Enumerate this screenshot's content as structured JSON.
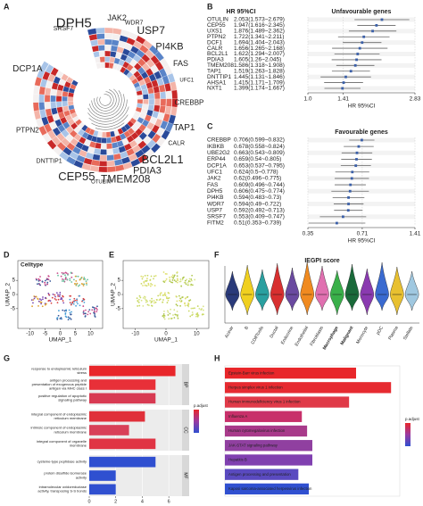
{
  "panels": [
    "A",
    "B",
    "C",
    "D",
    "E",
    "F",
    "G",
    "H"
  ],
  "circos": {
    "genes": [
      {
        "label": "DPH5",
        "color": "#222222"
      },
      {
        "label": "JAK2",
        "color": "#5a6ad8"
      },
      {
        "label": "WDR7",
        "color": "#9a9a9a"
      },
      {
        "label": "USP7",
        "color": "#b04ab8"
      },
      {
        "label": "PI4KB",
        "color": "#777777"
      },
      {
        "label": "FAS",
        "color": "#222222"
      },
      {
        "label": "UFC1",
        "color": "#8aa0e0"
      },
      {
        "label": "CREBBP",
        "color": "#c050b0"
      },
      {
        "label": "TAP1",
        "color": "#d04070"
      },
      {
        "label": "CALR",
        "color": "#6aa0d8"
      },
      {
        "label": "BCL2L1",
        "color": "#9acc30"
      },
      {
        "label": "PDIA3",
        "color": "#d8b020"
      },
      {
        "label": "TMEM208",
        "color": "#5ab848"
      },
      {
        "label": "OTULIN",
        "color": "#b0b0b0"
      },
      {
        "label": "CEP55",
        "color": "#3a9ae0"
      },
      {
        "label": "DNTTIP1",
        "color": "#b0b0b0"
      },
      {
        "label": "PTPN2",
        "color": "#222222"
      },
      {
        "label": "DCP1A",
        "color": "#c8c020"
      },
      {
        "label": "SRSF7",
        "color": "#555555"
      }
    ]
  },
  "chart_data": [
    {
      "type": "forest",
      "title": "Unfavourable genes",
      "header": "HR 95%CI",
      "xlabel": "HR 95%CI",
      "log_scale": true,
      "color": "#3a5fa8",
      "categories": [
        "OTULIN",
        "CEP55",
        "UXS1",
        "PTPN2",
        "DCF1",
        "CALR",
        "BCL2L1",
        "PDIA3",
        "TMEM208",
        "TAP1",
        "DNTTIP1",
        "AHSA1",
        "NXT1"
      ],
      "values": [
        2.053,
        1.947,
        1.876,
        1.722,
        1.694,
        1.656,
        1.622,
        1.605,
        1.586,
        1.519,
        1.445,
        1.415,
        1.399
      ],
      "lower": [
        1.573,
        1.616,
        1.489,
        1.341,
        1.404,
        1.265,
        1.294,
        1.26,
        1.318,
        1.263,
        1.131,
        1.171,
        1.174
      ],
      "upper": [
        2.679,
        2.345,
        2.362,
        2.211,
        2.043,
        2.168,
        2.007,
        2.045,
        1.908,
        1.828,
        1.846,
        1.709,
        1.667
      ],
      "value_labels": [
        "2.053(1.573~2.679)",
        "1.947(1.616~2.345)",
        "1.876(1.489~2.362)",
        "1.722(1.341~2.211)",
        "1.694(1.404~2.043)",
        "1.656(1.265~2.168)",
        "1.622(1.294~2.007)",
        "1.605(1.26~2.045)",
        "1.586(1.318~1.908)",
        "1.519(1.263~1.828)",
        "1.445(1.131~1.846)",
        "1.415(1.171~1.709)",
        "1.399(1.174~1.667)"
      ],
      "xlim": [
        1,
        2.83
      ],
      "xticks": [
        {
          "value": 1,
          "label": "1.0"
        },
        1.41,
        2.83
      ]
    },
    {
      "type": "forest",
      "title": "Favourable genes",
      "xlabel": "HR 95%CI",
      "log_scale": true,
      "color": "#3a5fa8",
      "categories": [
        "CREBBP",
        "IKBKB",
        "UBE2G2",
        "ERP44",
        "DCP1A",
        "UFC1",
        "JAK2",
        "FAS",
        "DPH5",
        "PI4KB",
        "WDR7",
        "USP7",
        "SRSF7",
        "FITM2"
      ],
      "values": [
        0.706,
        0.678,
        0.663,
        0.659,
        0.653,
        0.624,
        0.62,
        0.609,
        0.606,
        0.594,
        0.594,
        0.592,
        0.553,
        0.51
      ],
      "lower": [
        0.599,
        0.558,
        0.543,
        0.54,
        0.537,
        0.5,
        0.496,
        0.496,
        0.475,
        0.483,
        0.49,
        0.492,
        0.409,
        0.353
      ],
      "upper": [
        0.832,
        0.824,
        0.809,
        0.805,
        0.795,
        0.778,
        0.775,
        0.744,
        0.774,
        0.73,
        0.722,
        0.713,
        0.747,
        0.739
      ],
      "value_labels": [
        "0.706(0.599~0.832)",
        "0.678(0.558~0.824)",
        "0.663(0.543~0.809)",
        "0.659(0.54~0.805)",
        "0.653(0.537~0.795)",
        "0.624(0.5~0.778)",
        "0.62(0.496~0.775)",
        "0.609(0.496~0.744)",
        "0.606(0.475~0.774)",
        "0.594(0.483~0.73)",
        "0.594(0.49~0.722)",
        "0.592(0.492~0.713)",
        "0.553(0.409~0.747)",
        "0.51(0.353~0.739)"
      ],
      "xlim": [
        0.35,
        1.41
      ],
      "xticks": [
        0.35,
        0.71,
        1.41
      ]
    },
    {
      "type": "umap",
      "title": "Celltype",
      "xlabel": "UMAP_1",
      "ylabel": "UMAP_2",
      "xlim": [
        -14,
        14
      ],
      "ylim": [
        -12,
        12
      ],
      "xticks": [
        -10,
        -5,
        0,
        5,
        10
      ],
      "yticks": [
        -5,
        0,
        5
      ]
    },
    {
      "type": "umap",
      "xlabel": "UMAP_1",
      "ylabel": "UMAP_2",
      "xlim": [
        -14,
        14
      ],
      "ylim": [
        -12,
        12
      ],
      "xticks": [
        -10,
        0,
        10
      ],
      "yticks": [
        -5,
        0,
        5
      ]
    },
    {
      "type": "violin",
      "title": "IEGPI score",
      "categories": [
        "Acinar",
        "B",
        "CD8Tcells",
        "Ductal",
        "Endocrine",
        "Endothelial",
        "Fibroblasts",
        "Macrophage",
        "Malignant",
        "Monocyte",
        "pDC",
        "Plasma",
        "Stellate"
      ],
      "colors": [
        "#2a3a7a",
        "#f0d020",
        "#2aa0a0",
        "#d83030",
        "#6a4aa0",
        "#f08a20",
        "#e070b0",
        "#3ab04a",
        "#1a6a3a",
        "#8a3ab0",
        "#3a6ad0",
        "#e8c030",
        "#a0c8e0"
      ]
    },
    {
      "type": "hbar",
      "legend_title": "p.adjust",
      "xlim": [
        0,
        7
      ],
      "xticks": [
        0,
        2,
        4,
        6
      ],
      "facets": [
        {
          "name": "BP",
          "categories": [
            "response to endoplasmic reticulum stress",
            "antigen processing and presentation of exogenous peptide antigen via MHC class I",
            "positive regulation of apoptotic signaling pathway"
          ],
          "values": [
            6.5,
            5,
            5
          ],
          "colors": [
            "#e8262a",
            "#e83038",
            "#d83a52"
          ]
        },
        {
          "name": "CC",
          "categories": [
            "integral component of endoplasmic reticulum membrane",
            "intrinsic component of endoplasmic reticulum membrane",
            "integral component of organelle membrane"
          ],
          "values": [
            4.2,
            3,
            5
          ],
          "colors": [
            "#e0303a",
            "#d84058",
            "#e03444"
          ]
        },
        {
          "name": "MF",
          "categories": [
            "cysteine-type peptidase activity",
            "protein disulfide isomerase activity",
            "intramolecular oxidoreductase activity, transposing S-S bonds"
          ],
          "values": [
            5,
            2,
            2
          ],
          "colors": [
            "#2f4fd0",
            "#2f50d0",
            "#3050d0"
          ]
        }
      ]
    },
    {
      "type": "hbar",
      "legend_title": "p.adjust",
      "xlim": [
        0,
        10
      ],
      "facets": [
        {
          "categories": [
            "Epstein-Barr virus infection",
            "Herpes simplex virus 1 infection",
            "Human immunodeficiency virus 1 infection",
            "Influenza A",
            "Human cytomegalovirus infection",
            "JAK-STAT signaling pathway",
            "Hepatitis B",
            "Antigen processing and presentation",
            "Kaposi sarcoma-associated herpesvirus infection"
          ],
          "values": [
            7.5,
            9.5,
            7.1,
            4.4,
            4.7,
            5,
            5,
            4.2,
            4.8
          ],
          "colors": [
            "#e8262a",
            "#e62a30",
            "#e03a48",
            "#c8306a",
            "#a83a8a",
            "#9040a0",
            "#8040b0",
            "#5a4ac0",
            "#3050d0"
          ]
        }
      ]
    }
  ]
}
